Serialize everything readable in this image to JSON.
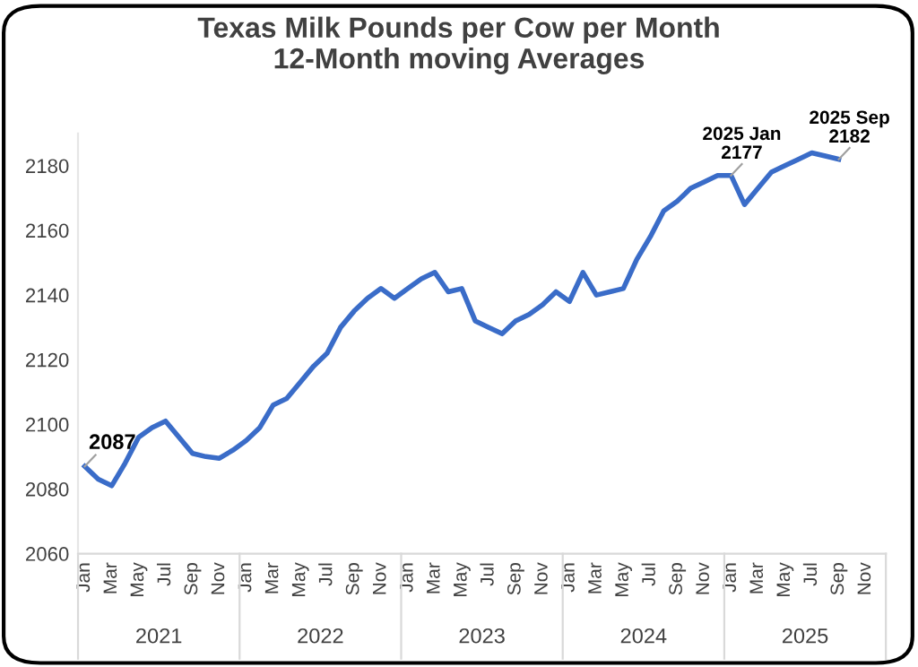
{
  "chart_data": {
    "type": "line",
    "title": "Texas Milk Pounds per Cow per Month\n12-Month moving Averages",
    "categories": [
      "Jan",
      null,
      "Mar",
      null,
      "May",
      null,
      "Jul",
      null,
      "Sep",
      null,
      "Nov",
      null,
      "Jan",
      null,
      "Mar",
      null,
      "May",
      null,
      "Jul",
      null,
      "Sep",
      null,
      "Nov",
      null,
      "Jan",
      null,
      "Mar",
      null,
      "May",
      null,
      "Jul",
      null,
      "Sep",
      null,
      "Nov",
      null,
      "Jan",
      null,
      "Mar",
      null,
      "May",
      null,
      "Jul",
      null,
      "Sep",
      null,
      "Nov",
      null,
      "Jan",
      null,
      "Mar",
      null,
      "May",
      null,
      "Jul",
      null,
      "Sep",
      null,
      "Nov",
      null
    ],
    "series": [
      {
        "color": "#3a6cc8",
        "values": [
          2087,
          2083,
          2081,
          2088,
          2096,
          2099,
          2101,
          2096,
          2091,
          2090,
          2089.5,
          2092,
          2095,
          2099,
          2106,
          2108,
          2113,
          2118,
          2122,
          2130,
          2135,
          2139,
          2142,
          2139,
          2142,
          2145,
          2147,
          2141,
          2142,
          2132,
          2130,
          2128,
          2132,
          2134,
          2137,
          2141,
          2138,
          2147,
          2140,
          2141,
          2142,
          2151,
          2158,
          2166,
          2169,
          2173,
          2175,
          2177,
          2177,
          2168,
          2173,
          2178,
          2180,
          2182,
          2184,
          2183,
          2182,
          null,
          null,
          null
        ],
        "value_labels": [
          "2087",
          null,
          null,
          null,
          null,
          null,
          null,
          null,
          null,
          null,
          null,
          null,
          null,
          null,
          null,
          null,
          null,
          null,
          null,
          null,
          null,
          null,
          null,
          null,
          null,
          null,
          null,
          null,
          null,
          null,
          null,
          null,
          null,
          null,
          null,
          null,
          null,
          null,
          null,
          null,
          null,
          null,
          null,
          null,
          null,
          null,
          null,
          null,
          "2025 Jan\n2177",
          null,
          null,
          null,
          null,
          null,
          null,
          null,
          "2025 Sep\n2182",
          null,
          null,
          null
        ]
      }
    ],
    "annotations": [
      "2021",
      "2022",
      "2023",
      "2024",
      "2025"
    ],
    "ylim": [
      2060,
      2190
    ],
    "yticks": [
      2060,
      2080,
      2100,
      2120,
      2140,
      2160,
      2180
    ],
    "grid": false,
    "legend": false,
    "marker": "none",
    "line_style": "solid"
  }
}
